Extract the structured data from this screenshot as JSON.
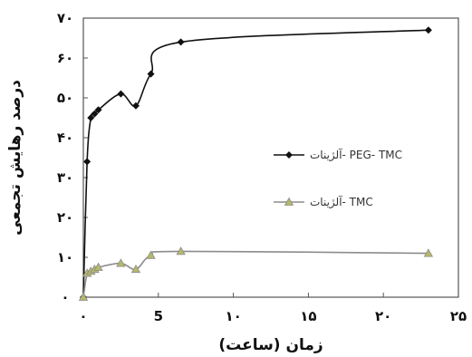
{
  "chart_data": {
    "type": "line",
    "xlabel": "زمان (ساعت)",
    "ylabel": "درصد رهایش تجمعی",
    "xlim": [
      0,
      25
    ],
    "ylim": [
      0,
      70
    ],
    "x_ticks": [
      0,
      5,
      10,
      15,
      20,
      25
    ],
    "y_ticks": [
      0,
      10,
      20,
      30,
      40,
      50,
      60,
      70
    ],
    "x_tick_labels": [
      "۰",
      "5",
      "۱۰",
      "۱۵",
      "۲۰",
      "۲۵"
    ],
    "y_tick_labels": [
      "۰",
      "۱۰",
      "۲۰",
      "۳۰",
      "۴۰",
      "۵۰",
      "۶۰",
      "۷۰"
    ],
    "grid": false,
    "legend_position": "right",
    "series": [
      {
        "name": "آلژینات- PEG- TMC",
        "color": "#111111",
        "marker": "diamond",
        "x": [
          0,
          0.25,
          0.5,
          0.75,
          1,
          2.5,
          3.5,
          4.5,
          6.5,
          23
        ],
        "y": [
          0,
          34,
          45,
          46,
          47,
          51,
          48,
          56,
          64,
          67
        ]
      },
      {
        "name": "آلژینات- TMC",
        "color": "#8c8c8c",
        "marker": "triangle",
        "x": [
          0,
          0.25,
          0.5,
          0.75,
          1,
          2.5,
          3.5,
          4.5,
          6.5,
          23
        ],
        "y": [
          0,
          6,
          6.5,
          7,
          7.5,
          8.5,
          7,
          10.5,
          11.5,
          11
        ]
      }
    ]
  }
}
